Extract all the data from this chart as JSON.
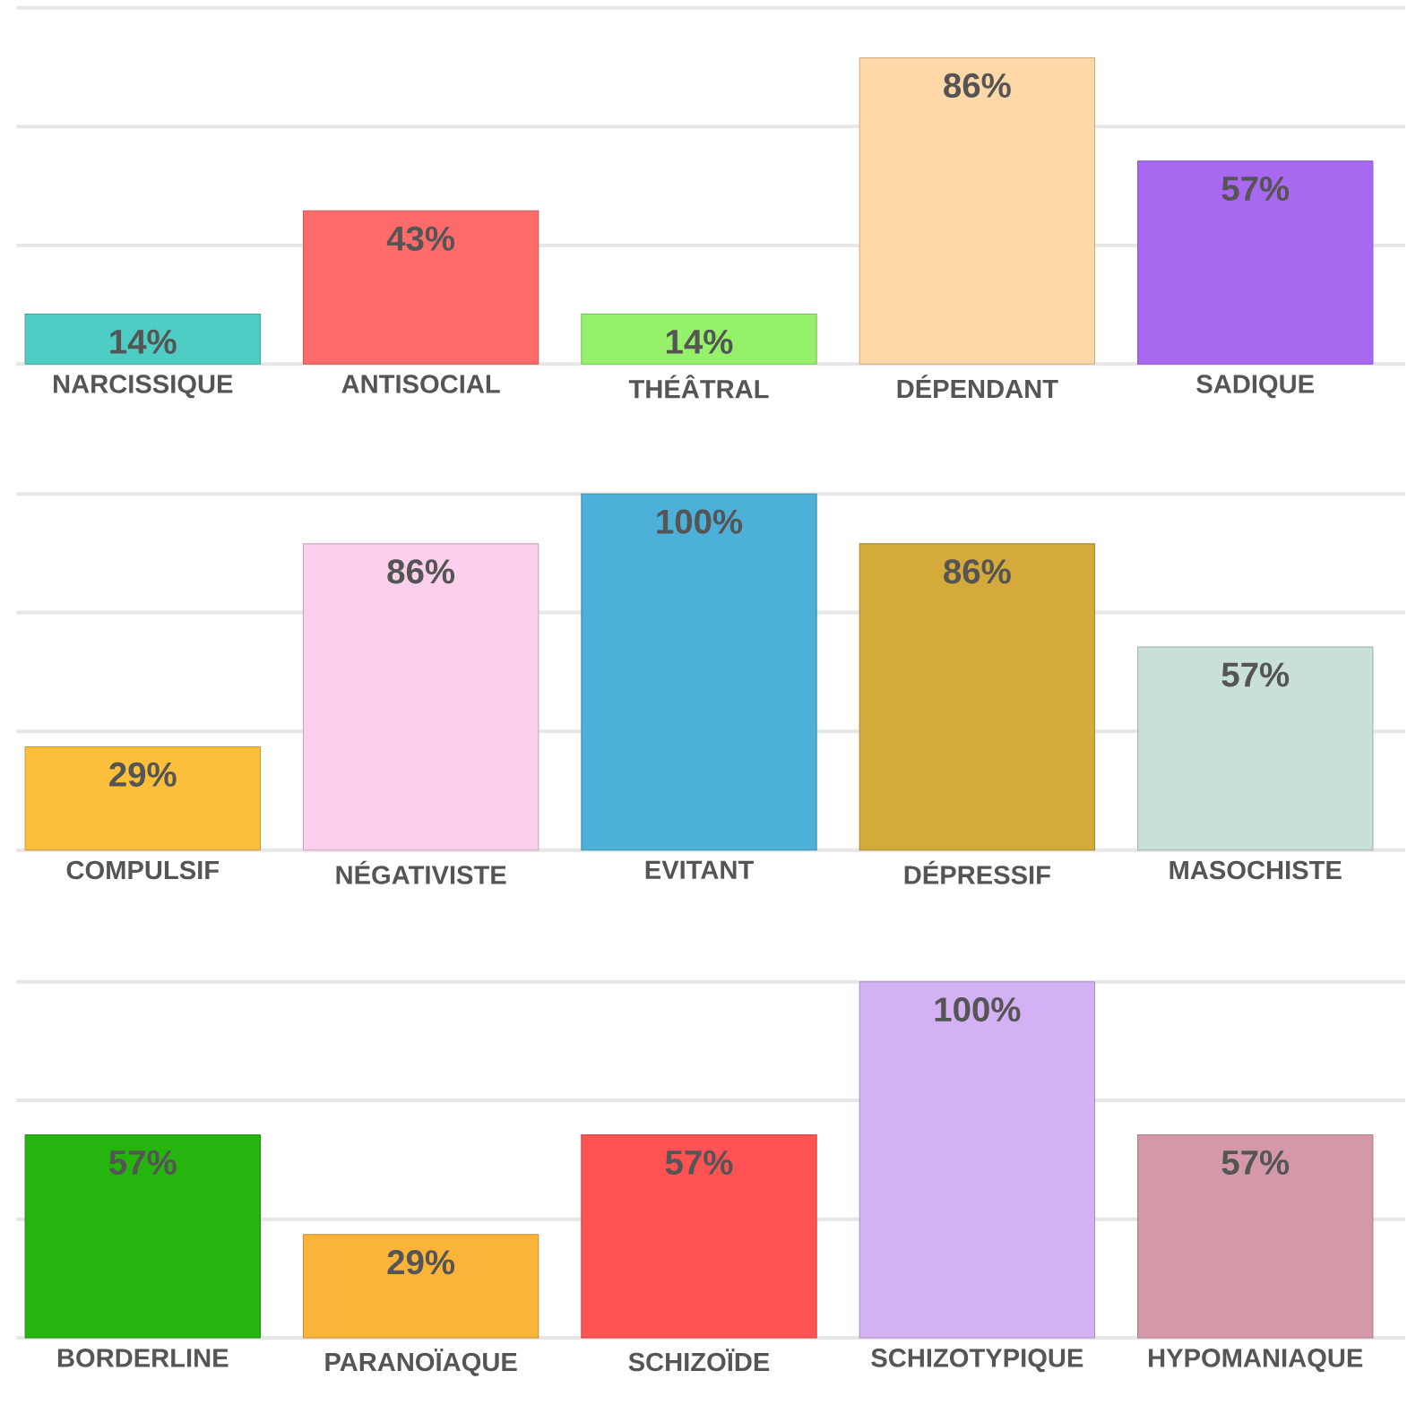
{
  "chart_data": [
    {
      "type": "bar",
      "categories": [
        "NARCISSIQUE",
        "ANTISOCIAL",
        "THÉÂTRAL",
        "DÉPENDANT",
        "SADIQUE"
      ],
      "values": [
        14,
        43,
        14,
        86,
        57
      ],
      "colors": [
        "#4ecdc4",
        "#ff6b6b",
        "#95f06a",
        "#ffd8a8",
        "#a968f0"
      ],
      "value_labels": [
        "14%",
        "43%",
        "14%",
        "86%",
        "57%"
      ],
      "ylim": [
        0,
        100
      ],
      "yticks": [
        {
          "value": 0,
          "label": null
        },
        {
          "value": 33.3,
          "label": null
        },
        {
          "value": 66.7,
          "label": null
        },
        {
          "value": 100,
          "label": null
        }
      ],
      "grid": "y"
    },
    {
      "type": "bar",
      "categories": [
        "COMPULSIF",
        "NÉGATIVISTE",
        "EVITANT",
        "DÉPRESSIF",
        "MASOCHISTE"
      ],
      "values": [
        29,
        86,
        100,
        86,
        57
      ],
      "colors": [
        "#fbbf3c",
        "#fcd0ec",
        "#4db0d8",
        "#d4aa3a",
        "#c8e0d6"
      ],
      "value_labels": [
        "29%",
        "86%",
        "100%",
        "86%",
        "57%"
      ],
      "ylim": [
        0,
        100
      ],
      "yticks": [
        {
          "value": 0,
          "label": null
        },
        {
          "value": 33.3,
          "label": null
        },
        {
          "value": 66.7,
          "label": null
        },
        {
          "value": 100,
          "label": null
        }
      ],
      "grid": "y"
    },
    {
      "type": "bar",
      "categories": [
        "BORDERLINE",
        "PARANOÏAQUE",
        "SCHIZOÏDE",
        "SCHIZOTYPIQUE",
        "HYPOMANIAQUE"
      ],
      "values": [
        57,
        29,
        57,
        100,
        57
      ],
      "colors": [
        "#26b50e",
        "#fbb43a",
        "#ff5252",
        "#d4b0f5",
        "#d498a8"
      ],
      "value_labels": [
        "57%",
        "29%",
        "57%",
        "100%",
        "57%"
      ],
      "ylim": [
        0,
        100
      ],
      "yticks": [
        {
          "value": 0,
          "label": null
        },
        {
          "value": 33.3,
          "label": null
        },
        {
          "value": 66.7,
          "label": null
        },
        {
          "value": 100,
          "label": null
        }
      ],
      "grid": "y"
    }
  ]
}
